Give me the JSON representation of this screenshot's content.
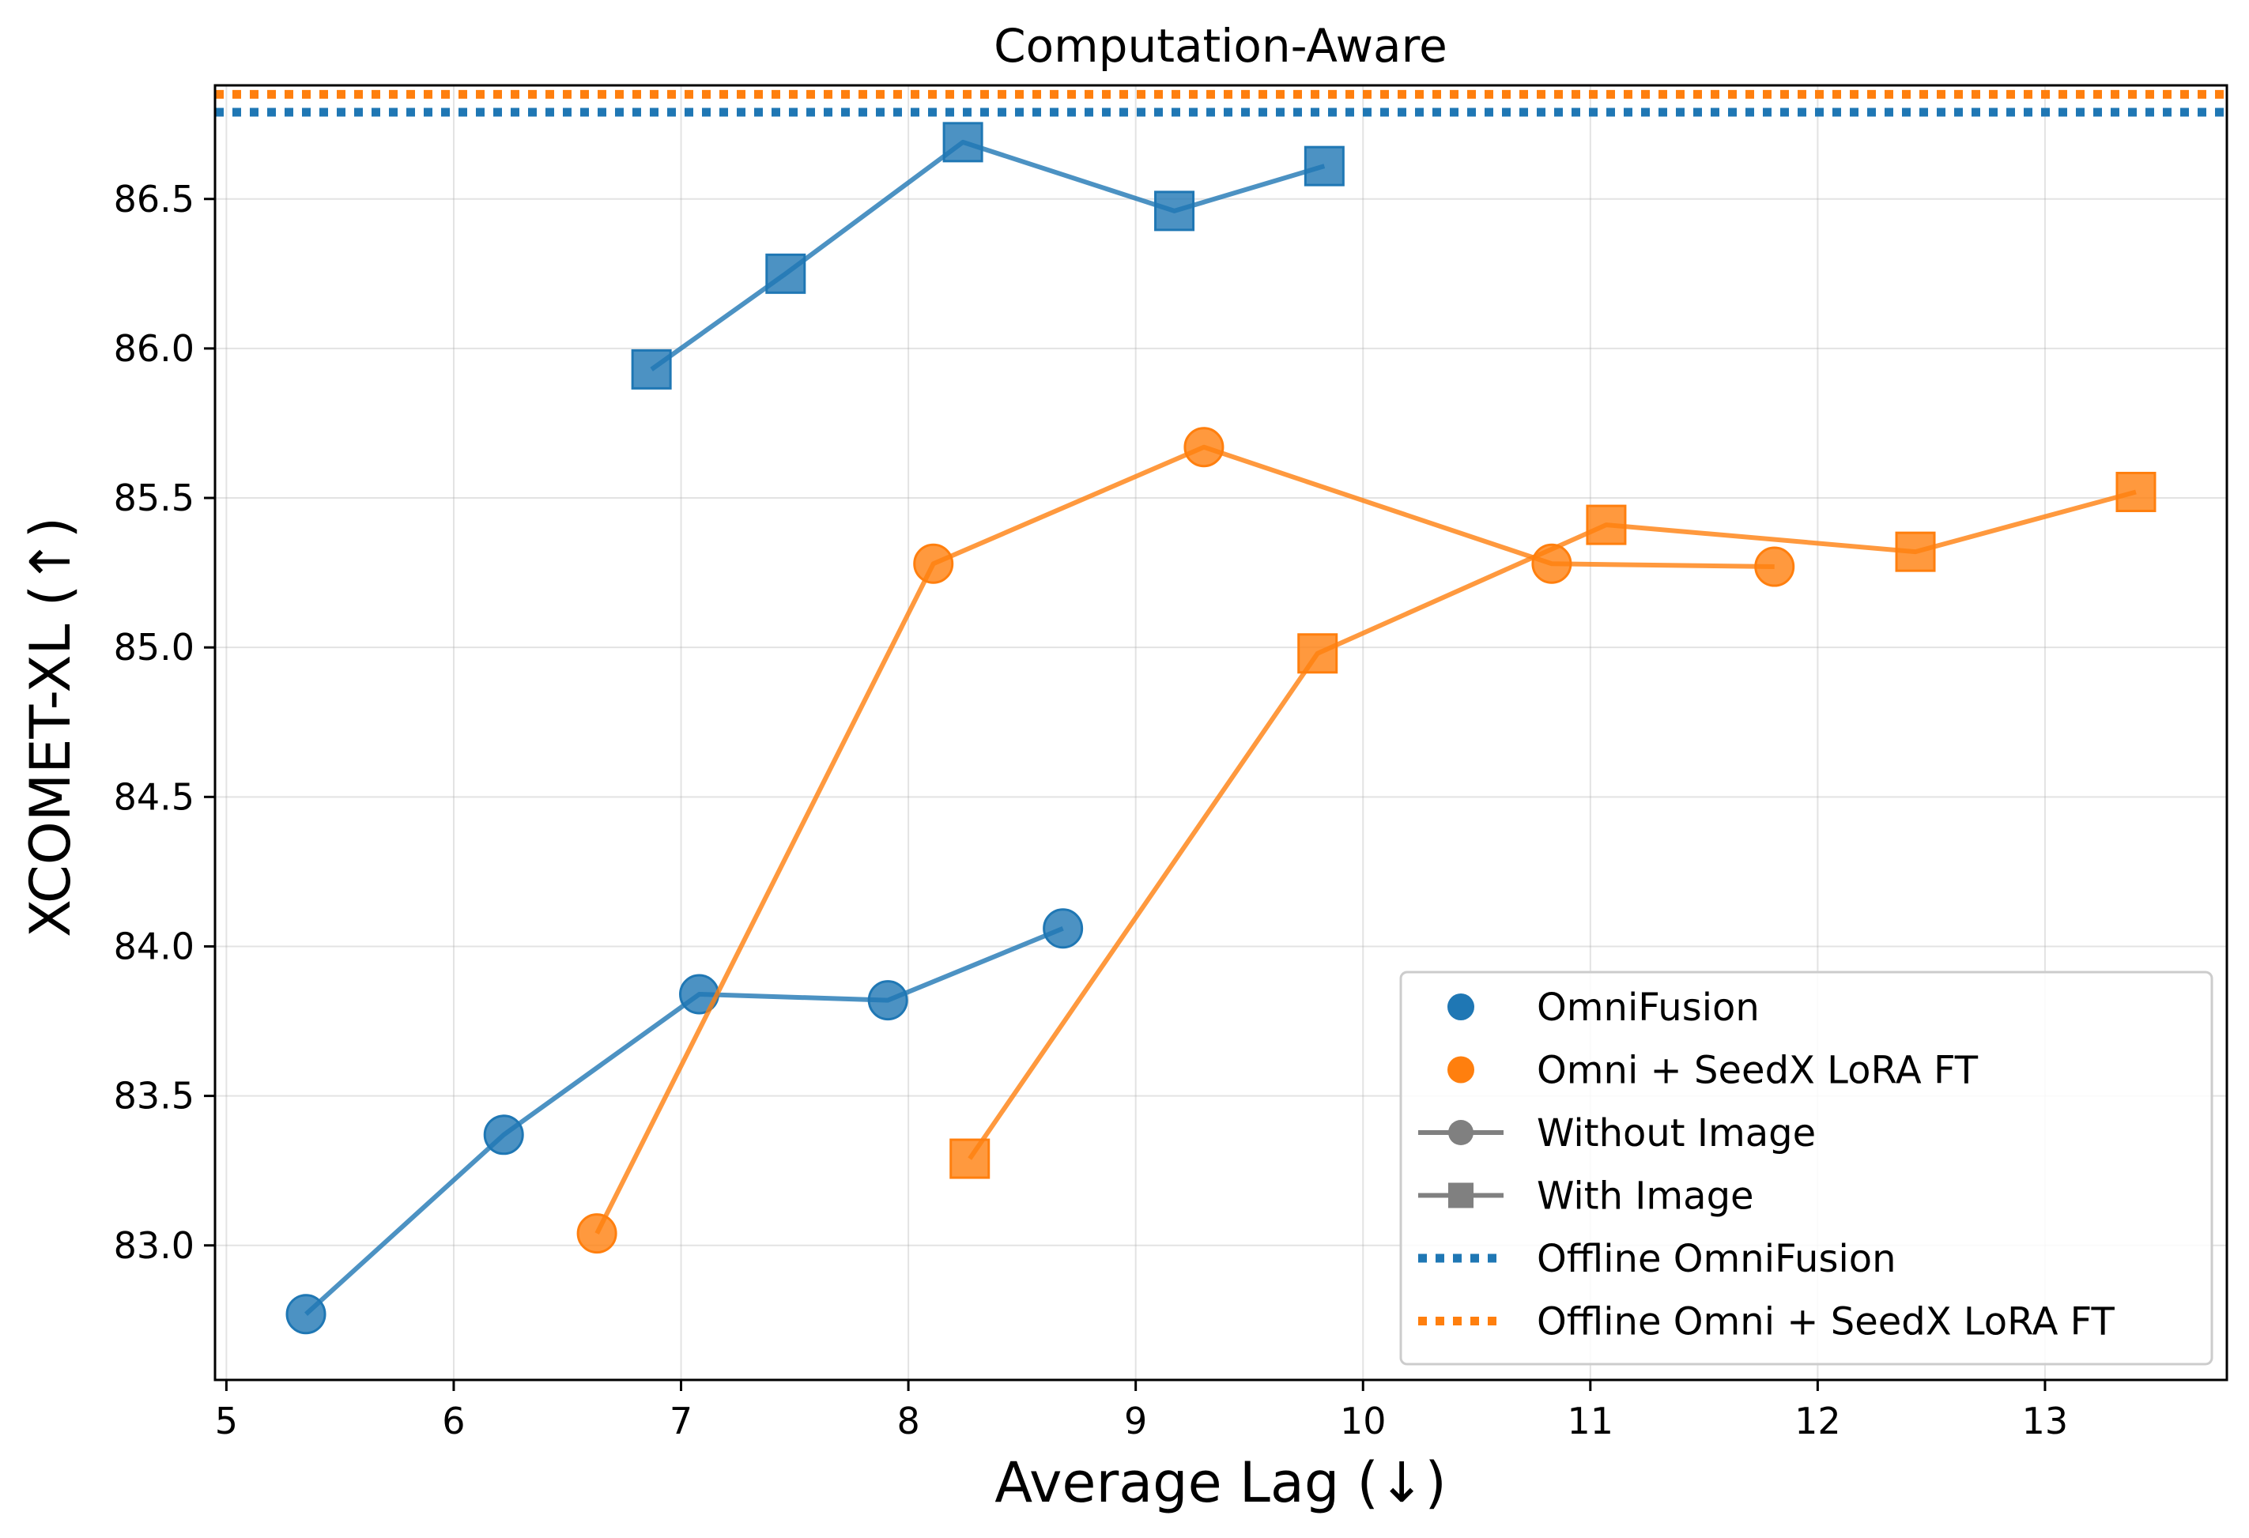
{
  "chart_data": {
    "type": "line",
    "title": "Computation-Aware",
    "xlabel": "Average Lag (↓)",
    "ylabel": "XCOMET-XL (↑)",
    "xlim": [
      4.95,
      13.8
    ],
    "ylim": [
      82.55,
      86.88
    ],
    "xticks": [
      5,
      6,
      7,
      8,
      9,
      10,
      11,
      12,
      13
    ],
    "xtick_labels": [
      "5",
      "6",
      "7",
      "8",
      "9",
      "10",
      "11",
      "12",
      "13"
    ],
    "yticks": [
      83.0,
      83.5,
      84.0,
      84.5,
      85.0,
      85.5,
      86.0,
      86.5
    ],
    "ytick_labels": [
      "83.0",
      "83.5",
      "84.0",
      "84.5",
      "85.0",
      "85.5",
      "86.0",
      "86.5"
    ],
    "grid": true,
    "legend_position": "bottom-right",
    "colors": {
      "omnifusion": "#1f77b4",
      "seedx": "#ff7f0e",
      "neutral": "#808080"
    },
    "series": [
      {
        "name": "OmniFusion - Without Image",
        "model": "omnifusion",
        "marker": "circle",
        "x": [
          5.35,
          6.22,
          7.08,
          7.91,
          8.68
        ],
        "y": [
          82.77,
          83.37,
          83.84,
          83.82,
          84.06
        ]
      },
      {
        "name": "OmniFusion - With Image",
        "model": "omnifusion",
        "marker": "square",
        "x": [
          6.87,
          7.46,
          8.24,
          9.17,
          9.83
        ],
        "y": [
          85.93,
          86.25,
          86.69,
          86.46,
          86.61
        ]
      },
      {
        "name": "Omni + SeedX LoRA FT - Without Image",
        "model": "seedx",
        "marker": "circle",
        "x": [
          6.63,
          8.11,
          9.3,
          10.83,
          11.81
        ],
        "y": [
          83.04,
          85.28,
          85.67,
          85.28,
          85.27
        ]
      },
      {
        "name": "Omni + SeedX LoRA FT - With Image",
        "model": "seedx",
        "marker": "square",
        "x": [
          8.27,
          9.8,
          11.07,
          12.43,
          13.4
        ],
        "y": [
          83.29,
          84.98,
          85.41,
          85.32,
          85.52
        ]
      }
    ],
    "reference_lines": [
      {
        "name": "Offline OmniFusion",
        "model": "omnifusion",
        "y": 86.79
      },
      {
        "name": "Offline Omni + SeedX LoRA FT",
        "model": "seedx",
        "y": 86.85
      }
    ],
    "legend": [
      {
        "label": "OmniFusion",
        "kind": "dot",
        "model": "omnifusion"
      },
      {
        "label": "Omni + SeedX LoRA FT",
        "kind": "dot",
        "model": "seedx"
      },
      {
        "label": "Without Image",
        "kind": "line-circle",
        "model": "neutral"
      },
      {
        "label": "With Image",
        "kind": "line-square",
        "model": "neutral"
      },
      {
        "label": "Offline OmniFusion",
        "kind": "dotted",
        "model": "omnifusion"
      },
      {
        "label": "Offline Omni + SeedX LoRA FT",
        "kind": "dotted",
        "model": "seedx"
      }
    ]
  }
}
